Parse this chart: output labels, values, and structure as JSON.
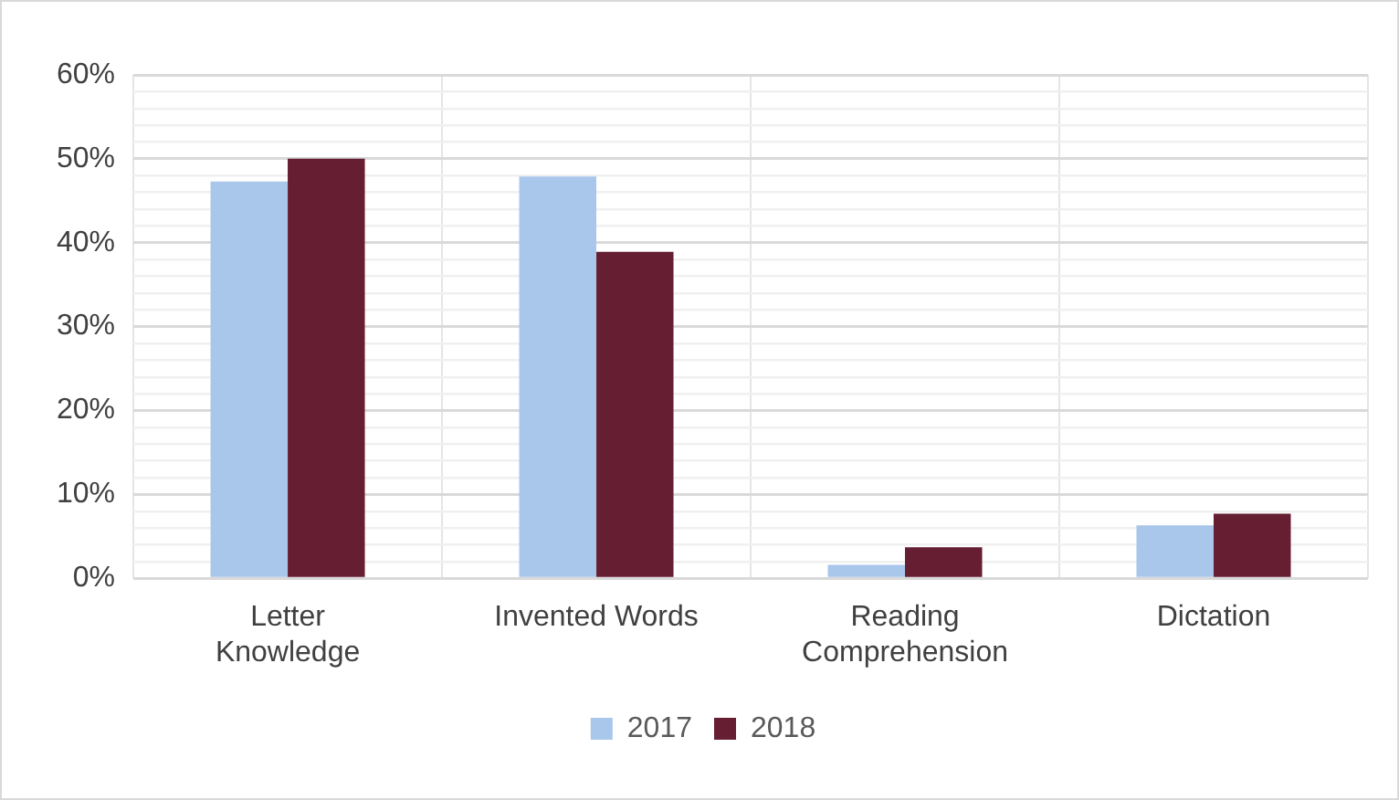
{
  "chart_data": {
    "type": "bar",
    "categories": [
      "Letter Knowledge",
      "Invented Words",
      "Reading Comprehension",
      "Dictation"
    ],
    "series": [
      {
        "name": "2017",
        "color": "#a9c6eb",
        "values": [
          47.3,
          47.9,
          1.6,
          6.3
        ]
      },
      {
        "name": "2018",
        "color": "#661e32",
        "values": [
          50,
          38.9,
          3.7,
          7.7
        ]
      }
    ],
    "ylim": [
      0,
      60
    ],
    "yticks": [
      {
        "value": 0,
        "label": "0%"
      },
      {
        "value": 2,
        "label": null
      },
      {
        "value": 4,
        "label": null
      },
      {
        "value": 6,
        "label": null
      },
      {
        "value": 8,
        "label": null
      },
      {
        "value": 10,
        "label": "10%"
      },
      {
        "value": 12,
        "label": null
      },
      {
        "value": 14,
        "label": null
      },
      {
        "value": 16,
        "label": null
      },
      {
        "value": 18,
        "label": null
      },
      {
        "value": 20,
        "label": "20%"
      },
      {
        "value": 22,
        "label": null
      },
      {
        "value": 24,
        "label": null
      },
      {
        "value": 26,
        "label": null
      },
      {
        "value": 28,
        "label": null
      },
      {
        "value": 30,
        "label": "30%"
      },
      {
        "value": 32,
        "label": null
      },
      {
        "value": 34,
        "label": null
      },
      {
        "value": 36,
        "label": null
      },
      {
        "value": 38,
        "label": null
      },
      {
        "value": 40,
        "label": "40%"
      },
      {
        "value": 42,
        "label": null
      },
      {
        "value": 44,
        "label": null
      },
      {
        "value": 46,
        "label": null
      },
      {
        "value": 48,
        "label": null
      },
      {
        "value": 50,
        "label": "50%"
      },
      {
        "value": 52,
        "label": null
      },
      {
        "value": 54,
        "label": null
      },
      {
        "value": 56,
        "label": null
      },
      {
        "value": 58,
        "label": null
      },
      {
        "value": 60,
        "label": "60%"
      }
    ],
    "grid": true,
    "legend": "bottom"
  }
}
